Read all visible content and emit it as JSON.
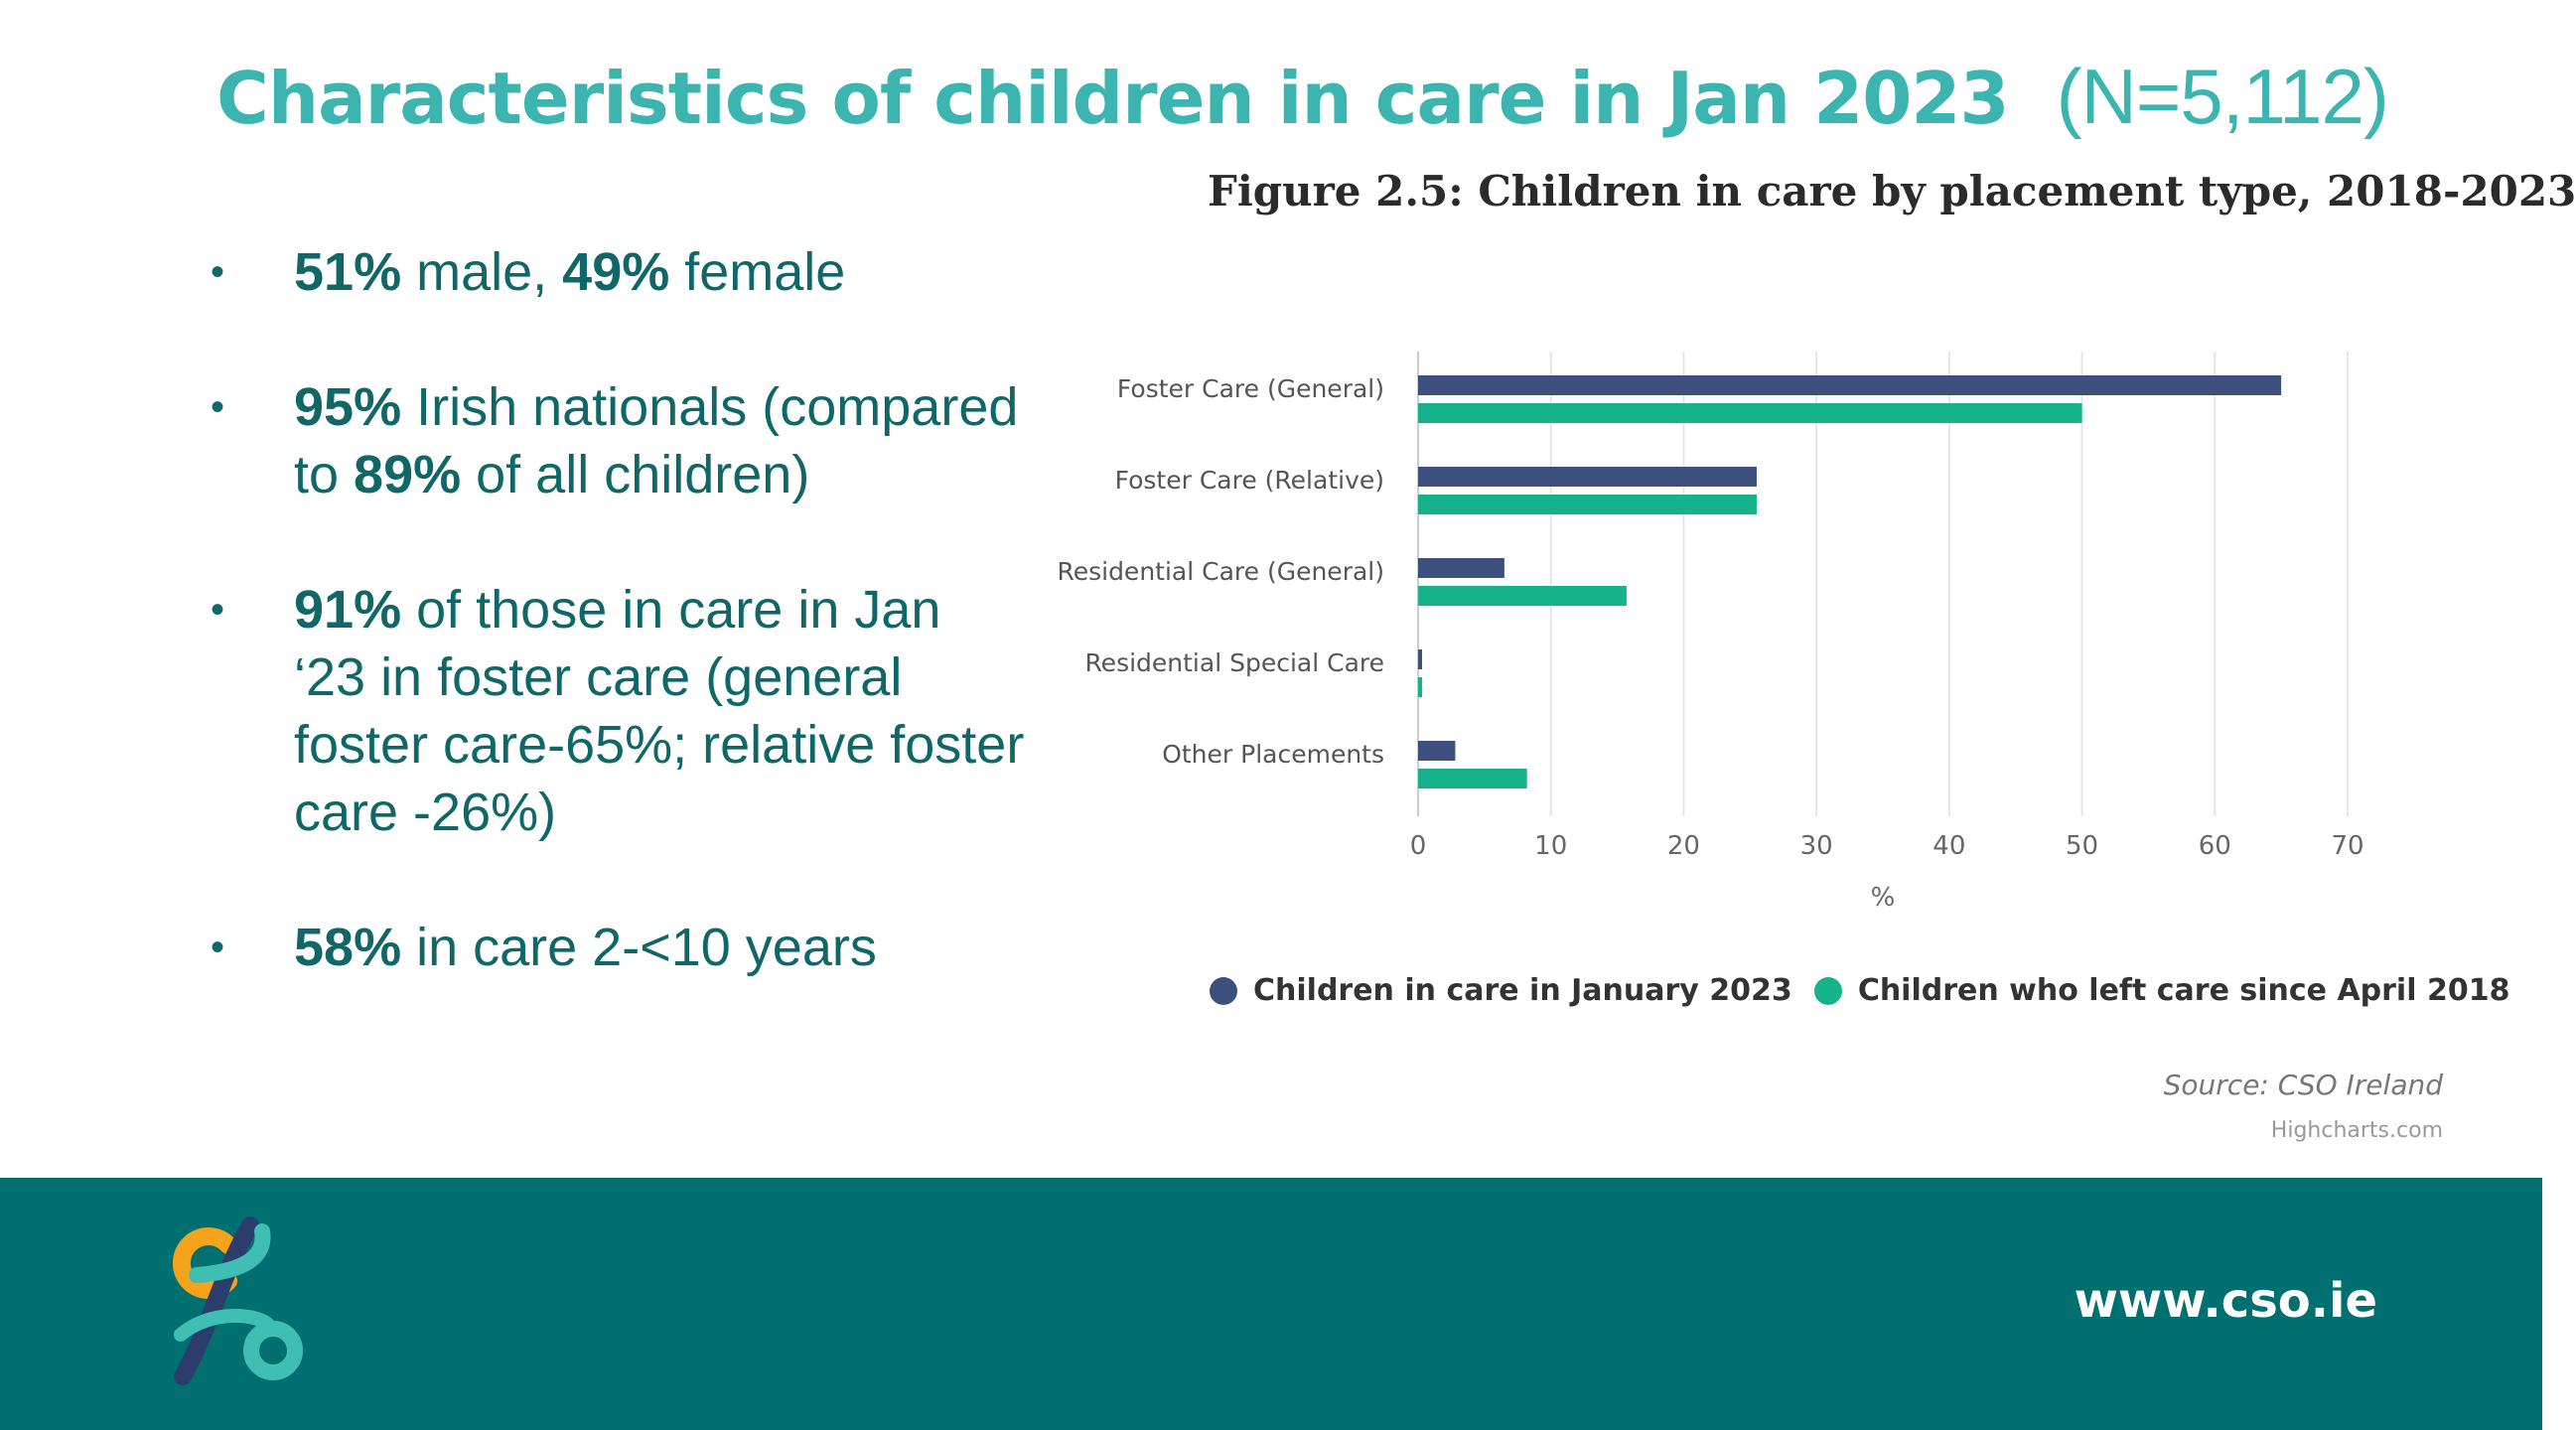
{
  "slide": {
    "title": "Characteristics of children in care in Jan 2023",
    "title_n": "(N=5,112)",
    "bullets": [
      {
        "b1": "51%",
        "t1": " male, ",
        "b2": "49%",
        "t2": " female"
      },
      {
        "b1": "95%",
        "t1": " Irish nationals (compared to ",
        "b2": "89%",
        "t2": " of all children)"
      },
      {
        "b1": "91%",
        "t1": " of those in care in Jan ‘23 in foster care (general foster care-65%; relative foster care -26%)",
        "b2": "",
        "t2": ""
      },
      {
        "b1": "58%",
        "t1": " in care 2-<10 years",
        "b2": "",
        "t2": ""
      }
    ],
    "url": "www.cso.ie"
  },
  "colors": {
    "title": "#3cb5b0",
    "bullet_text": "#0f6767",
    "footer_bg": "#006f6f",
    "series_2023": "#3d4f7d",
    "series_left": "#16b38a",
    "logo_orange": "#f5a31a",
    "logo_teal": "#3fbfb4",
    "logo_navy": "#2d3d6b"
  },
  "chart_data": {
    "type": "bar",
    "orientation": "horizontal",
    "title": "Figure 2.5: Children in care by placement type, 2018-2023",
    "categories": [
      "Foster Care (General)",
      "Foster Care (Relative)",
      "Residential Care (General)",
      "Residential Special Care",
      "Other Placements"
    ],
    "series": [
      {
        "name": "Children in care in January 2023",
        "values": [
          65,
          25.5,
          6.5,
          0.3,
          2.8
        ]
      },
      {
        "name": "Children who left care since April 2018",
        "values": [
          50,
          25.5,
          15.7,
          0.3,
          8.2
        ]
      }
    ],
    "xlabel": "%",
    "xlim": [
      0,
      70
    ],
    "xticks": [
      0,
      10,
      20,
      30,
      40,
      50,
      60,
      70
    ],
    "grid": true,
    "legend_position": "bottom",
    "source": "Source: CSO Ireland",
    "credits": "Highcharts.com"
  }
}
